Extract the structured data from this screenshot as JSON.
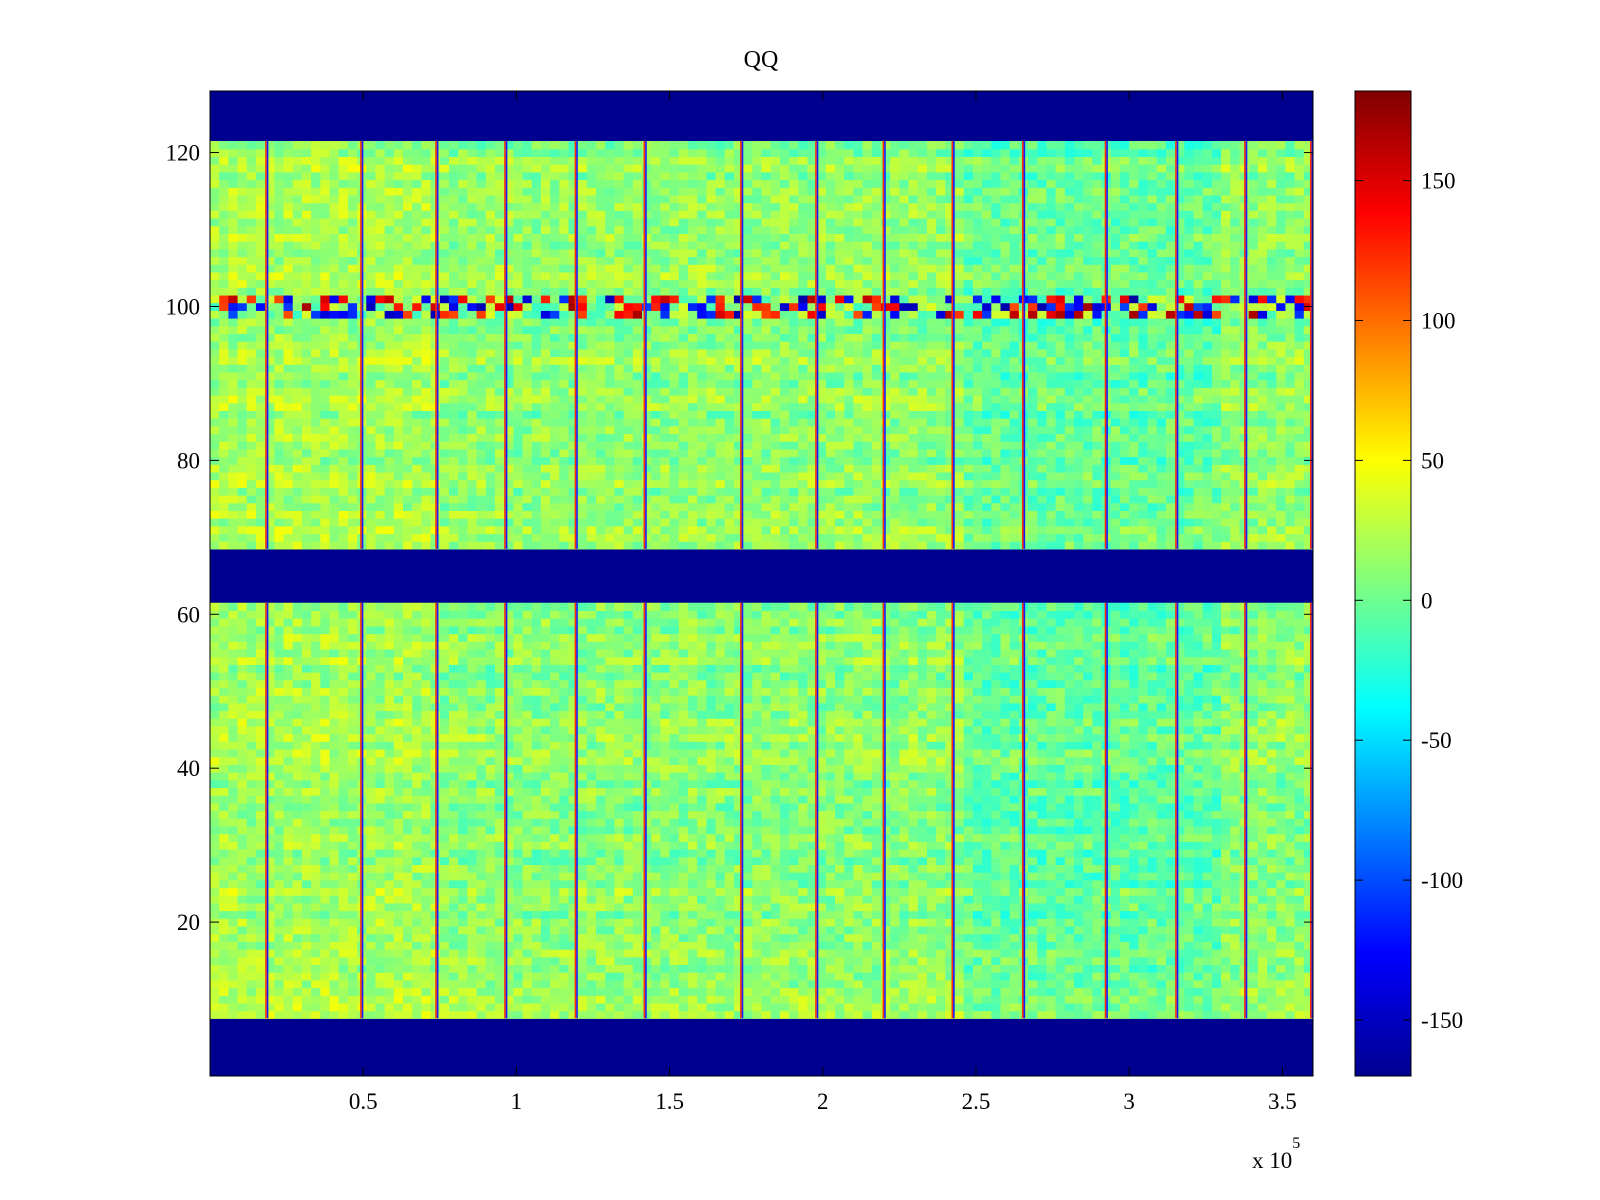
{
  "chart_data": {
    "type": "heatmap",
    "title": "QQ",
    "xlabel": "",
    "ylabel": "",
    "x_exponent_label": "x 10",
    "x_exponent_power": "5",
    "x_multiplier": 100000,
    "xlim": [
      0,
      3.6
    ],
    "ylim": [
      0,
      128
    ],
    "x_ticks": [
      0.5,
      1,
      1.5,
      2,
      2.5,
      3,
      3.5
    ],
    "x_tick_labels": [
      "0.5",
      "1",
      "1.5",
      "2",
      "2.5",
      "3",
      "3.5"
    ],
    "y_ticks": [
      20,
      40,
      60,
      80,
      100,
      120
    ],
    "y_tick_labels": [
      "20",
      "40",
      "60",
      "80",
      "100",
      "120"
    ],
    "colormap": "jet",
    "colorbar": {
      "range": [
        -170,
        182
      ],
      "ticks": [
        -150,
        -100,
        -50,
        0,
        50,
        100,
        150
      ],
      "tick_labels": [
        "-150",
        "-100",
        "-50",
        "0",
        "50",
        "100",
        "150"
      ]
    },
    "background_value": -170,
    "row_bands": [
      {
        "y_start": 7.5,
        "y_end": 61.5,
        "base_value": 12
      },
      {
        "y_start": 68.5,
        "y_end": 121.5,
        "base_value": 12
      }
    ],
    "empty_bands": [
      {
        "y_start": 0,
        "y_end": 7.5
      },
      {
        "y_start": 61.5,
        "y_end": 68.5
      },
      {
        "y_start": 121.5,
        "y_end": 128
      }
    ],
    "noisy_rows": {
      "y_start": 98.5,
      "y_end": 101.5
    },
    "bright_columns_x": [
      0.185,
      0.495,
      0.74,
      0.965,
      1.195,
      1.42,
      1.735,
      1.98,
      2.2,
      2.425,
      2.655,
      2.925,
      3.155,
      3.38,
      3.595
    ],
    "grid": false,
    "legend": "colorbar-right"
  }
}
